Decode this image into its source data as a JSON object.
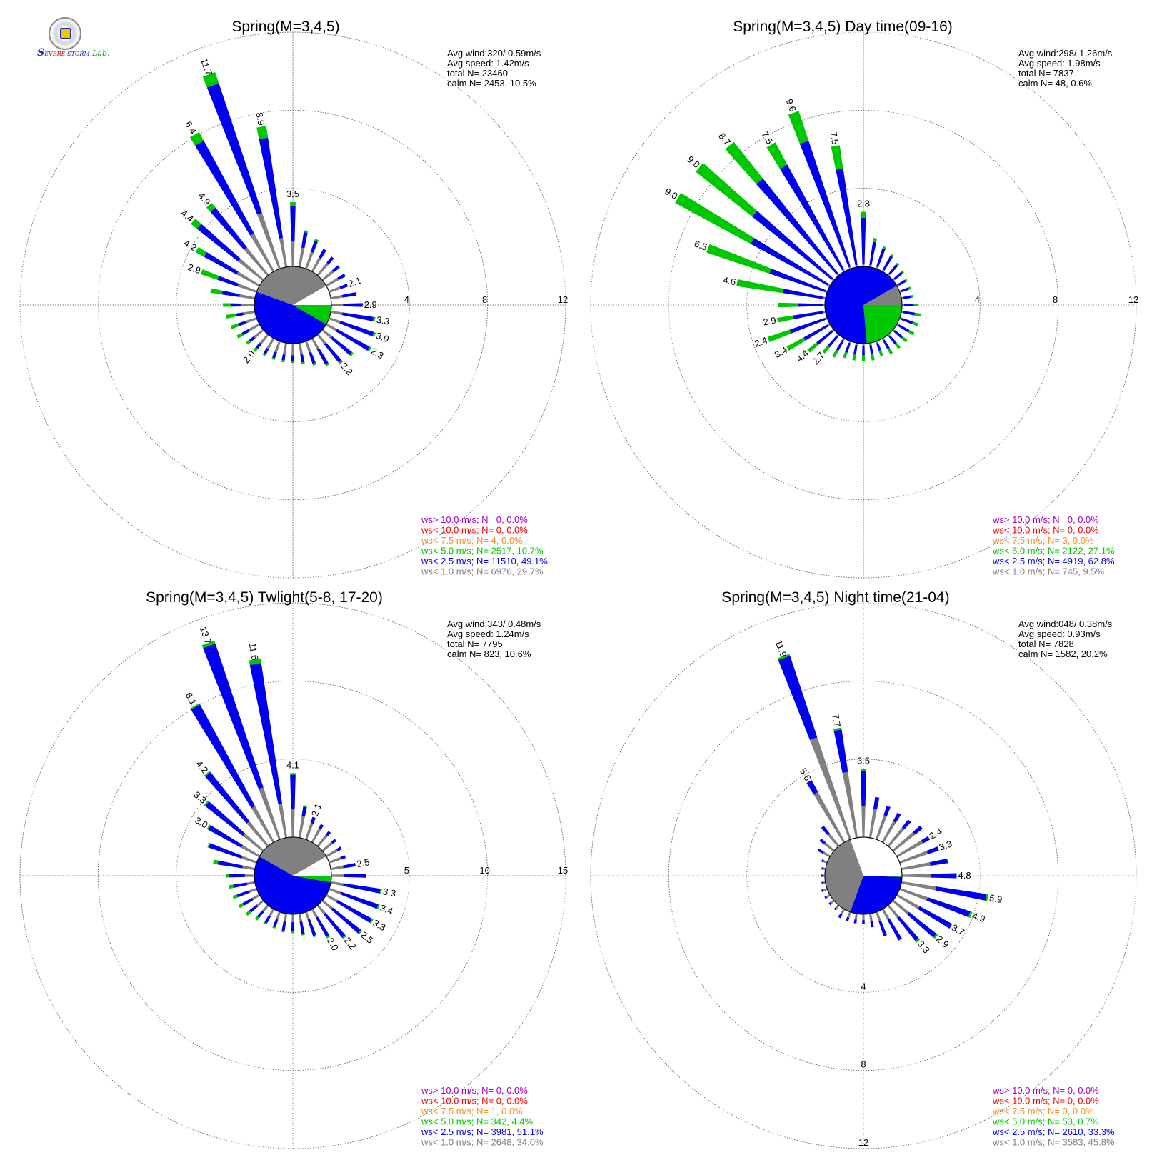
{
  "logo": {
    "text": "SSEVERE STORM Lab.",
    "colors": [
      "#1d2aa8",
      "#e00000",
      "#00b000"
    ]
  },
  "series_colors": {
    "gt10": "#a000c8",
    "lt10": "#ff0000",
    "lt7_5": "#ff8c1a",
    "lt5": "#00c800",
    "lt2_5": "#0000f0",
    "lt1": "#808080"
  },
  "chart_data": [
    {
      "type": "windrose",
      "title": "Spring(M=3,4,5)",
      "stats": [
        "Avg wind:320/ 0.59m/s",
        "Avg speed: 1.42m/s",
        "total N=      23460",
        "calm N=   2453,  10.5%"
      ],
      "radial_axis": {
        "max": 12,
        "ticks": [
          4,
          8,
          12
        ],
        "tick_labels": [
          "4",
          "8",
          "12"
        ]
      },
      "legend": [
        {
          "text": "ws> 10.0 m/s; N=      0,  0.0%",
          "series": "gt10"
        },
        {
          "text": "ws< 10.0 m/s; N=      0,  0.0%",
          "series": "lt10"
        },
        {
          "text": "ws<  7.5 m/s; N=      4,  0.0%",
          "series": "lt7_5"
        },
        {
          "text": "ws<  5.0 m/s; N=  2517, 10.7%",
          "series": "lt5"
        },
        {
          "text": "ws<  2.5 m/s; N= 11510, 49.1%",
          "series": "lt2_5"
        },
        {
          "text": "ws<  1.0 m/s; N=  6976, 29.7%",
          "series": "lt1"
        }
      ],
      "directions_deg": [
        0,
        10,
        20,
        30,
        40,
        50,
        60,
        70,
        80,
        90,
        100,
        110,
        120,
        130,
        140,
        150,
        160,
        170,
        180,
        190,
        200,
        210,
        220,
        230,
        240,
        250,
        260,
        270,
        280,
        290,
        300,
        310,
        320,
        330,
        340,
        350
      ],
      "lt1": [
        1.3,
        1.0,
        0.9,
        0.8,
        0.8,
        0.7,
        0.7,
        0.6,
        0.6,
        0.6,
        0.6,
        0.6,
        0.6,
        0.6,
        0.6,
        0.6,
        0.6,
        0.6,
        0.6,
        0.6,
        0.6,
        0.6,
        0.6,
        0.6,
        0.6,
        0.6,
        0.6,
        0.7,
        0.8,
        1.0,
        1.3,
        1.6,
        1.8,
        2.2,
        3.0,
        1.5
      ],
      "lt2_5": [
        1.8,
        0.8,
        0.6,
        0.5,
        0.4,
        0.4,
        0.4,
        0.4,
        0.7,
        1.0,
        1.6,
        1.8,
        1.9,
        1.3,
        1.2,
        0.9,
        0.6,
        0.4,
        0.3,
        0.3,
        0.3,
        0.3,
        0.3,
        0.3,
        0.4,
        0.4,
        0.4,
        0.5,
        0.9,
        1.1,
        1.9,
        2.7,
        2.6,
        5.4,
        7.0,
        5.2
      ],
      "lt5": [
        0.2,
        0.1,
        0.1,
        0.0,
        0.0,
        0.0,
        0.0,
        0.0,
        0.0,
        0.0,
        0.1,
        0.1,
        0.1,
        0.1,
        0.1,
        0.1,
        0.1,
        0.1,
        0.1,
        0.1,
        0.1,
        0.1,
        0.2,
        0.2,
        0.3,
        0.4,
        0.5,
        0.4,
        0.6,
        0.9,
        0.5,
        0.4,
        0.3,
        0.5,
        0.6,
        0.6
      ],
      "labels": [
        [
          0,
          "3.5"
        ],
        [
          70,
          "2.1"
        ],
        [
          90,
          "2.9"
        ],
        [
          100,
          "3.3"
        ],
        [
          110,
          "3.0"
        ],
        [
          120,
          "2.3"
        ],
        [
          140,
          "2.2"
        ],
        [
          220,
          "2.0"
        ],
        [
          290,
          "2.9"
        ],
        [
          300,
          "4.2"
        ],
        [
          310,
          "4.4"
        ],
        [
          320,
          "4.9"
        ],
        [
          330,
          "6.4"
        ],
        [
          340,
          "11.7"
        ],
        [
          350,
          "8.9"
        ]
      ],
      "calm_pie": [
        {
          "series": "lt1",
          "from": 290,
          "to": 60
        },
        {
          "series": "lt2_5",
          "from": 120,
          "to": 290
        },
        {
          "series": "lt5",
          "from": 90,
          "to": 120
        }
      ]
    },
    {
      "type": "windrose",
      "title": "Spring(M=3,4,5) Day time(09-16)",
      "stats": [
        "Avg wind:298/ 1.26m/s",
        "Avg speed: 1.98m/s",
        "total N=       7837",
        "calm N=     48,   0.6%"
      ],
      "radial_axis": {
        "max": 12,
        "ticks": [
          4,
          8,
          12
        ],
        "tick_labels": [
          "4",
          "8",
          "12"
        ]
      },
      "legend": [
        {
          "text": "ws> 10.0 m/s; N=      0,  0.0%",
          "series": "gt10"
        },
        {
          "text": "ws< 10.0 m/s; N=      0,  0.0%",
          "series": "lt10"
        },
        {
          "text": "ws<  7.5 m/s; N=      3,  0.0%",
          "series": "lt7_5"
        },
        {
          "text": "ws<  5.0 m/s; N=  2122, 27.1%",
          "series": "lt5"
        },
        {
          "text": "ws<  2.5 m/s; N=  4919, 62.8%",
          "series": "lt2_5"
        },
        {
          "text": "ws<  1.0 m/s; N=    745,  9.5%",
          "series": "lt1"
        }
      ],
      "directions_deg": [
        0,
        10,
        20,
        30,
        40,
        50,
        60,
        70,
        80,
        90,
        100,
        110,
        120,
        130,
        140,
        150,
        160,
        170,
        180,
        190,
        200,
        210,
        220,
        230,
        240,
        250,
        260,
        270,
        280,
        290,
        300,
        310,
        320,
        330,
        340,
        350
      ],
      "lt1": [
        0.1,
        0.1,
        0.1,
        0.1,
        0.1,
        0.1,
        0.1,
        0.1,
        0.1,
        0.1,
        0.1,
        0.1,
        0.1,
        0.1,
        0.1,
        0.1,
        0.1,
        0.1,
        0.1,
        0.1,
        0.1,
        0.1,
        0.1,
        0.1,
        0.1,
        0.1,
        0.1,
        0.1,
        0.1,
        0.1,
        0.1,
        0.1,
        0.1,
        0.1,
        0.1,
        0.1
      ],
      "lt2_5": [
        2.4,
        1.2,
        1.0,
        0.8,
        0.6,
        0.5,
        0.4,
        0.4,
        0.4,
        0.5,
        0.6,
        0.6,
        0.6,
        0.5,
        0.5,
        0.5,
        0.4,
        0.5,
        0.5,
        0.5,
        0.5,
        0.6,
        0.7,
        1.0,
        1.4,
        1.9,
        1.6,
        1.3,
        2.1,
        3.0,
        4.5,
        5.2,
        6.2,
        6.1,
        6.8,
        5.0
      ],
      "lt5": [
        0.3,
        0.2,
        0.1,
        0.1,
        0.1,
        0.1,
        0.1,
        0.1,
        0.1,
        0.2,
        0.3,
        0.3,
        0.3,
        0.3,
        0.3,
        0.3,
        0.3,
        0.3,
        0.3,
        0.3,
        0.3,
        0.4,
        0.4,
        0.6,
        1.0,
        1.2,
        0.8,
        1.0,
        2.4,
        3.4,
        4.4,
        3.7,
        2.4,
        1.3,
        1.6,
        1.2
      ],
      "labels": [
        [
          0,
          "2.8"
        ],
        [
          220,
          "2.7"
        ],
        [
          230,
          "4.4"
        ],
        [
          240,
          "3.4"
        ],
        [
          250,
          "2.4"
        ],
        [
          260,
          "2.9"
        ],
        [
          280,
          "4.6"
        ],
        [
          290,
          "6.5"
        ],
        [
          300,
          "9.0"
        ],
        [
          310,
          "9.0"
        ],
        [
          320,
          "8.7"
        ],
        [
          330,
          "7.5"
        ],
        [
          340,
          "9.6"
        ],
        [
          350,
          "7.5"
        ]
      ],
      "calm_pie": [
        {
          "series": "lt1",
          "from": 60,
          "to": 90
        },
        {
          "series": "lt5",
          "from": 90,
          "to": 175
        },
        {
          "series": "lt2_5",
          "from": 175,
          "to": 420
        }
      ]
    },
    {
      "type": "windrose",
      "title": "Spring(M=3,4,5) Twlight(5-8, 17-20)",
      "stats": [
        "Avg wind:343/ 0.48m/s",
        "Avg speed: 1.24m/s",
        "total N=       7795",
        "calm N=    823,  10.6%"
      ],
      "radial_axis": {
        "max": 15,
        "ticks": [
          5,
          10,
          15
        ],
        "tick_labels": [
          "5",
          "10",
          "15"
        ]
      },
      "legend": [
        {
          "text": "ws> 10.0 m/s; N=      0,  0.0%",
          "series": "gt10"
        },
        {
          "text": "ws< 10.0 m/s; N=      0,  0.0%",
          "series": "lt10"
        },
        {
          "text": "ws<  7.5 m/s; N=      1,  0.0%",
          "series": "lt7_5"
        },
        {
          "text": "ws<  5.0 m/s; N=    342,  4.4%",
          "series": "lt5"
        },
        {
          "text": "ws<  2.5 m/s; N=  3981, 51.1%",
          "series": "lt2_5"
        },
        {
          "text": "ws<  1.0 m/s; N=  2648, 34.0%",
          "series": "lt1"
        }
      ],
      "directions_deg": [
        0,
        10,
        20,
        30,
        40,
        50,
        60,
        70,
        80,
        90,
        100,
        110,
        120,
        130,
        140,
        150,
        160,
        170,
        180,
        190,
        200,
        210,
        220,
        230,
        240,
        250,
        260,
        270,
        280,
        290,
        300,
        310,
        320,
        330,
        340,
        350
      ],
      "lt1": [
        1.8,
        1.4,
        1.1,
        1.0,
        0.9,
        0.8,
        0.8,
        0.8,
        0.8,
        0.8,
        0.8,
        0.8,
        0.8,
        0.8,
        0.7,
        0.6,
        0.5,
        0.5,
        0.5,
        0.5,
        0.5,
        0.5,
        0.5,
        0.5,
        0.5,
        0.5,
        0.5,
        0.6,
        0.8,
        1.0,
        1.3,
        1.6,
        2.0,
        2.6,
        3.5,
        2.2
      ],
      "lt2_5": [
        2.2,
        0.6,
        0.4,
        0.3,
        0.3,
        0.3,
        0.3,
        0.3,
        0.8,
        1.4,
        2.4,
        2.5,
        2.5,
        2.3,
        1.9,
        1.4,
        1.1,
        0.8,
        0.6,
        0.6,
        0.5,
        0.5,
        0.5,
        0.6,
        0.7,
        0.8,
        0.9,
        1.0,
        1.6,
        2.2,
        2.4,
        3.1,
        4.0,
        7.4,
        9.7,
        9.1
      ],
      "lt5": [
        0.1,
        0.1,
        0.0,
        0.0,
        0.0,
        0.0,
        0.0,
        0.0,
        0.0,
        0.0,
        0.1,
        0.1,
        0.1,
        0.1,
        0.1,
        0.1,
        0.1,
        0.1,
        0.1,
        0.1,
        0.1,
        0.1,
        0.2,
        0.3,
        0.3,
        0.3,
        0.3,
        0.2,
        0.3,
        0.1,
        0.1,
        0.1,
        0.1,
        0.1,
        0.2,
        0.3
      ],
      "labels": [
        [
          0,
          "4.1"
        ],
        [
          20,
          "2.1"
        ],
        [
          80,
          "2.5"
        ],
        [
          100,
          "3.3"
        ],
        [
          110,
          "3.4"
        ],
        [
          120,
          "3.3"
        ],
        [
          130,
          "2.5"
        ],
        [
          140,
          "2.2"
        ],
        [
          150,
          "2.0"
        ],
        [
          300,
          "3.0"
        ],
        [
          310,
          "3.3"
        ],
        [
          320,
          "4.2"
        ],
        [
          330,
          "6.1"
        ],
        [
          340,
          "13.7"
        ],
        [
          350,
          "11.6"
        ]
      ],
      "calm_pie": [
        {
          "series": "lt1",
          "from": 300,
          "to": 60
        },
        {
          "series": "lt2_5",
          "from": 100,
          "to": 300
        },
        {
          "series": "lt5",
          "from": 90,
          "to": 100
        }
      ]
    },
    {
      "type": "windrose",
      "title": "Spring(M=3,4,5) Night time(21-04)",
      "stats": [
        "Avg wind:048/ 0.38m/s",
        "Avg speed: 0.93m/s",
        "total N=       7828",
        "calm N=   1582,  20.2%"
      ],
      "radial_axis": {
        "max": 12,
        "ticks": [
          4,
          8,
          12
        ],
        "tick_labels": [
          "4",
          "8",
          "12"
        ]
      },
      "legend": [
        {
          "text": "ws> 10.0 m/s; N=      0,  0.0%",
          "series": "gt10"
        },
        {
          "text": "ws< 10.0 m/s; N=      0,  0.0%",
          "series": "lt10"
        },
        {
          "text": "ws<  7.5 m/s; N=      0,  0.0%",
          "series": "lt7_5"
        },
        {
          "text": "ws<  5.0 m/s; N=     53,  0.7%",
          "series": "lt5"
        },
        {
          "text": "ws<  2.5 m/s; N=  2610, 33.3%",
          "series": "lt2_5"
        },
        {
          "text": "ws<  1.0 m/s; N=  3583, 45.8%",
          "series": "lt1"
        }
      ],
      "directions_deg": [
        0,
        10,
        20,
        30,
        40,
        50,
        60,
        70,
        80,
        90,
        100,
        110,
        120,
        130,
        140,
        150,
        160,
        170,
        180,
        190,
        200,
        210,
        220,
        230,
        240,
        250,
        260,
        270,
        280,
        290,
        300,
        310,
        320,
        330,
        340,
        350
      ],
      "lt1": [
        1.6,
        1.5,
        1.3,
        1.2,
        1.2,
        1.4,
        1.5,
        1.5,
        1.5,
        1.5,
        1.8,
        1.5,
        1.3,
        1.0,
        0.8,
        0.6,
        0.5,
        0.4,
        0.3,
        0.3,
        0.3,
        0.3,
        0.2,
        0.2,
        0.2,
        0.2,
        0.1,
        0.1,
        0.1,
        0.2,
        0.4,
        0.6,
        0.8,
        2.9,
        5.5,
        3.4
      ],
      "lt2_5": [
        1.8,
        0.6,
        0.5,
        0.5,
        0.5,
        0.5,
        0.4,
        0.6,
        0.9,
        1.3,
        2.6,
        2.3,
        1.9,
        1.8,
        1.5,
        1.2,
        0.8,
        0.3,
        0.2,
        0.2,
        0.2,
        0.2,
        0.1,
        0.1,
        0.1,
        0.1,
        0.1,
        0.1,
        0.1,
        0.1,
        0.3,
        0.3,
        0.5,
        0.7,
        4.4,
        2.2
      ],
      "lt5": [
        0.1,
        0.0,
        0.0,
        0.0,
        0.0,
        0.0,
        0.0,
        0.0,
        0.0,
        0.0,
        0.1,
        0.1,
        0.0,
        0.1,
        0.1,
        0.0,
        0.0,
        0.0,
        0.0,
        0.0,
        0.0,
        0.0,
        0.0,
        0.0,
        0.0,
        0.0,
        0.0,
        0.0,
        0.0,
        0.0,
        0.0,
        0.0,
        0.0,
        0.0,
        0.1,
        0.1
      ],
      "labels": [
        [
          0,
          "3.5"
        ],
        [
          60,
          "2.4"
        ],
        [
          70,
          "3.3"
        ],
        [
          90,
          "4.8"
        ],
        [
          100,
          "5.9"
        ],
        [
          110,
          "4.9"
        ],
        [
          120,
          "3.7"
        ],
        [
          130,
          "2.9"
        ],
        [
          140,
          "3.3"
        ],
        [
          330,
          "5.6"
        ],
        [
          340,
          "11.9"
        ],
        [
          350,
          "7.7"
        ]
      ],
      "calm_pie": [
        {
          "series": "lt1",
          "from": 200,
          "to": 340
        },
        {
          "series": "lt2_5",
          "from": 92,
          "to": 200
        },
        {
          "series": "lt5",
          "from": 90,
          "to": 92
        }
      ]
    }
  ]
}
